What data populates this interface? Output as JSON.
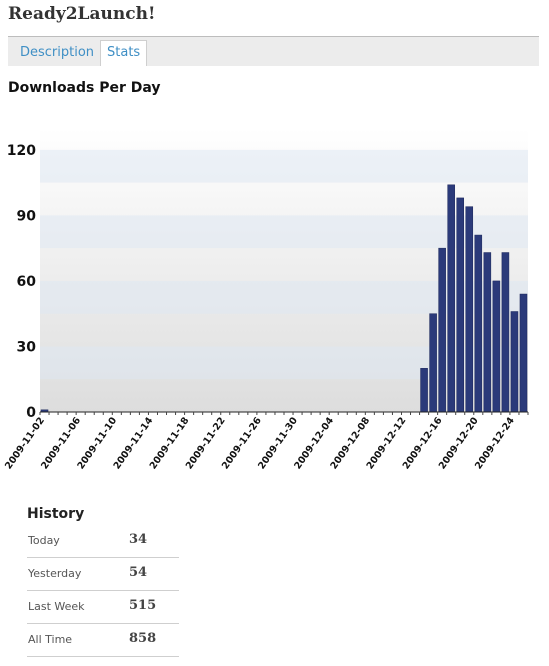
{
  "app": {
    "title": "Ready2Launch!"
  },
  "tabs": [
    {
      "label": "Description",
      "active": false
    },
    {
      "label": "Stats",
      "active": true
    }
  ],
  "section": {
    "title": "Downloads Per Day"
  },
  "colors": {
    "bar": "#2b3a7a",
    "tab_text": "#3f8fc5"
  },
  "chart_data": {
    "type": "bar",
    "ylim": [
      0,
      130
    ],
    "yticks": [
      0,
      30,
      60,
      90,
      120
    ],
    "grid": true,
    "tick_labels": [
      "2009-11-02",
      "2009-11-06",
      "2009-11-10",
      "2009-11-14",
      "2009-11-18",
      "2009-11-22",
      "2009-11-26",
      "2009-11-30",
      "2009-12-04",
      "2009-12-08",
      "2009-12-12",
      "2009-12-16",
      "2009-12-20",
      "2009-12-24"
    ],
    "categories": [
      "2009-11-02",
      "2009-11-03",
      "2009-11-04",
      "2009-11-05",
      "2009-11-06",
      "2009-11-07",
      "2009-11-08",
      "2009-11-09",
      "2009-11-10",
      "2009-11-11",
      "2009-11-12",
      "2009-11-13",
      "2009-11-14",
      "2009-11-15",
      "2009-11-16",
      "2009-11-17",
      "2009-11-18",
      "2009-11-19",
      "2009-11-20",
      "2009-11-21",
      "2009-11-22",
      "2009-11-23",
      "2009-11-24",
      "2009-11-25",
      "2009-11-26",
      "2009-11-27",
      "2009-11-28",
      "2009-11-29",
      "2009-11-30",
      "2009-12-01",
      "2009-12-02",
      "2009-12-03",
      "2009-12-04",
      "2009-12-05",
      "2009-12-06",
      "2009-12-07",
      "2009-12-08",
      "2009-12-09",
      "2009-12-10",
      "2009-12-11",
      "2009-12-12",
      "2009-12-13",
      "2009-12-14",
      "2009-12-15",
      "2009-12-16",
      "2009-12-17",
      "2009-12-18",
      "2009-12-19",
      "2009-12-20",
      "2009-12-21",
      "2009-12-22",
      "2009-12-23",
      "2009-12-24",
      "2009-12-25"
    ],
    "values": [
      1,
      0,
      0,
      0,
      0,
      0,
      0,
      0,
      0,
      0,
      0,
      0,
      0,
      0,
      0,
      0,
      0,
      0,
      0,
      0,
      0,
      0,
      0,
      0,
      0,
      0,
      0,
      0,
      0,
      0,
      0,
      0,
      0,
      0,
      0,
      0,
      0,
      0,
      0,
      0,
      0,
      0,
      20,
      45,
      75,
      104,
      98,
      94,
      81,
      73,
      60,
      73,
      46,
      54
    ]
  },
  "history": {
    "title": "History",
    "rows": [
      {
        "label": "Today",
        "value": "34"
      },
      {
        "label": "Yesterday",
        "value": "54"
      },
      {
        "label": "Last Week",
        "value": "515"
      },
      {
        "label": "All Time",
        "value": "858"
      }
    ]
  }
}
